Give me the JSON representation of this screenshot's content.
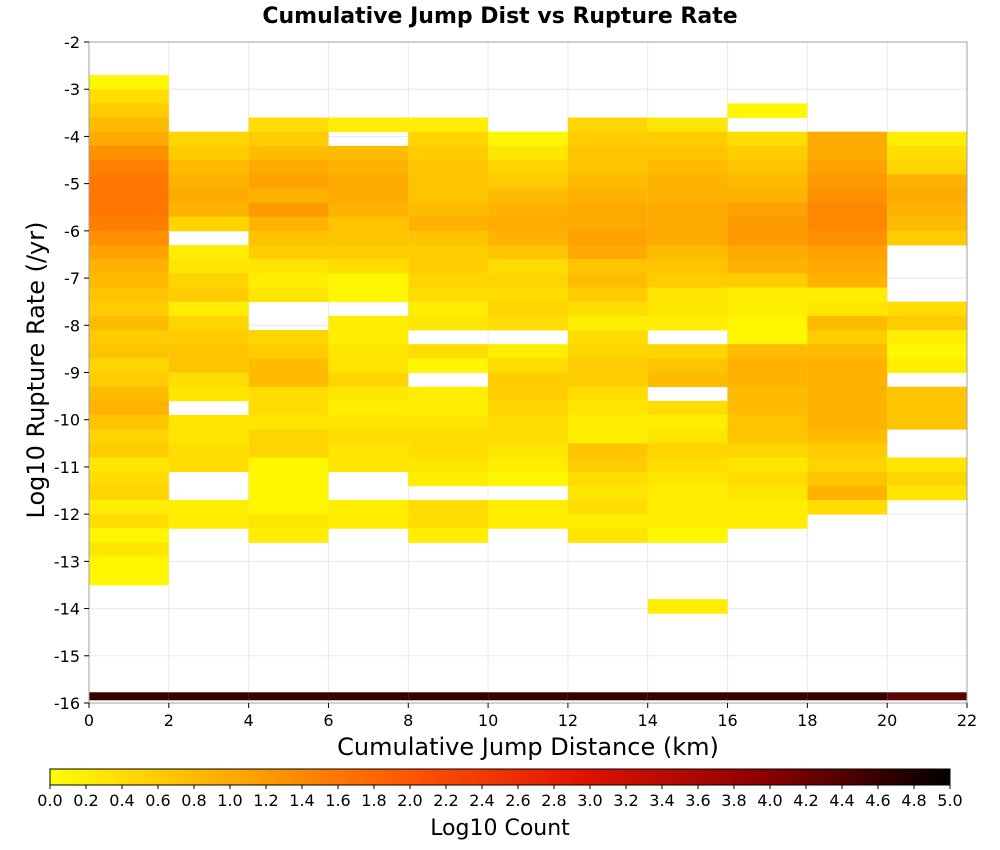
{
  "chart_data": {
    "type": "heatmap",
    "title": "Cumulative Jump Dist vs Rupture Rate",
    "xlabel": "Cumulative Jump Distance (km)",
    "ylabel": "Log10 Rupture Rate (/yr)",
    "xlim": [
      0,
      22
    ],
    "ylim": [
      -16,
      -2
    ],
    "x_ticks": [
      "0",
      "2",
      "4",
      "6",
      "8",
      "10",
      "12",
      "14",
      "16",
      "18",
      "20",
      "22"
    ],
    "y_ticks": [
      "-2",
      "-3",
      "-4",
      "-5",
      "-6",
      "-7",
      "-8",
      "-9",
      "-10",
      "-11",
      "-12",
      "-13",
      "-14",
      "-15",
      "-16"
    ],
    "grid": true,
    "x_bin_width": 2,
    "y_bin_height": 0.3,
    "colorbar": {
      "label": "Log10 Count",
      "range": [
        0,
        5
      ],
      "ticks": [
        "0.0",
        "0.2",
        "0.4",
        "0.6",
        "0.8",
        "1.0",
        "1.2",
        "1.4",
        "1.6",
        "1.8",
        "2.0",
        "2.2",
        "2.4",
        "2.6",
        "2.8",
        "3.0",
        "3.2",
        "3.4",
        "3.6",
        "3.8",
        "4.0",
        "4.2",
        "4.4",
        "4.6",
        "4.8",
        "5.0"
      ],
      "colors": [
        "#ffff00",
        "#ffaa00",
        "#ff5500",
        "#dd1100",
        "#880000",
        "#000000"
      ]
    },
    "cells": [
      {
        "x0": 0,
        "ymax": -2.7,
        "values": [
          0.1,
          0.4,
          0.6,
          0.8,
          1.0,
          1.3,
          1.5,
          1.6,
          1.6,
          1.6,
          1.5,
          1.3,
          1.1,
          0.9,
          0.8,
          0.7,
          0.6,
          0.8,
          0.6,
          0.7,
          0.5,
          0.6,
          0.8,
          0.9,
          0.7,
          0.5,
          0.6,
          0.3,
          0.4,
          0.5,
          0.2,
          0.4,
          0.1,
          0.3,
          0.1,
          0.1
        ]
      },
      {
        "x0": 2,
        "ymax": -3.9,
        "values": [
          0.5,
          0.6,
          0.8,
          0.9,
          1.0,
          0.9,
          0.5,
          null,
          0.2,
          0.3,
          0.5,
          0.6,
          0.2,
          0.5,
          0.6,
          0.7,
          0.7,
          0.4,
          0.3,
          null,
          0.3,
          0.3,
          0.4,
          0.4,
          null,
          null,
          0.2,
          0.2
        ]
      },
      {
        "x0": 4,
        "ymax": -3.6,
        "values": [
          0.4,
          0.6,
          0.8,
          1.0,
          1.1,
          0.9,
          1.2,
          0.9,
          0.7,
          0.6,
          0.3,
          0.2,
          0.3,
          null,
          null,
          0.5,
          0.6,
          0.8,
          0.8,
          0.4,
          0.4,
          0.3,
          0.5,
          0.5,
          0.1,
          0.1,
          0.1,
          0.1,
          0.3,
          0.2
        ]
      },
      {
        "x0": 6,
        "ymax": -3.6,
        "values": [
          0.2,
          null,
          0.8,
          0.9,
          1.0,
          1.0,
          0.9,
          0.7,
          0.7,
          0.6,
          0.4,
          0.1,
          0.1,
          null,
          0.2,
          0.2,
          0.3,
          0.3,
          0.5,
          0.3,
          0.2,
          0.3,
          0.4,
          0.3,
          0.3,
          null,
          null,
          0.2,
          0.2
        ]
      },
      {
        "x0": 8,
        "ymax": -3.6,
        "values": [
          0.2,
          0.5,
          0.6,
          0.7,
          0.7,
          0.7,
          0.8,
          0.9,
          0.7,
          0.6,
          0.6,
          0.5,
          0.4,
          0.2,
          0.3,
          null,
          0.4,
          0.1,
          null,
          0.2,
          0.2,
          0.3,
          0.4,
          0.4,
          0.3,
          0.2,
          null,
          0.4,
          0.4,
          0.2
        ]
      },
      {
        "x0": 10,
        "ymax": -3.9,
        "values": [
          0.1,
          0.3,
          0.5,
          0.6,
          0.8,
          0.9,
          1.0,
          0.9,
          0.7,
          0.4,
          0.5,
          0.4,
          0.5,
          0.4,
          null,
          0.2,
          0.4,
          0.6,
          0.6,
          0.5,
          0.4,
          0.4,
          0.3,
          0.2,
          0.1,
          null,
          0.2,
          0.2
        ]
      },
      {
        "x0": 12,
        "ymax": -3.6,
        "values": [
          0.5,
          0.6,
          0.7,
          0.7,
          0.8,
          0.9,
          1.0,
          1.0,
          1.1,
          1.0,
          0.7,
          0.8,
          0.6,
          0.4,
          0.2,
          0.4,
          0.5,
          0.6,
          0.6,
          0.4,
          0.3,
          0.2,
          0.2,
          0.7,
          0.6,
          0.4,
          0.3,
          0.4,
          0.2,
          0.3
        ]
      },
      {
        "x0": 14,
        "ymax": -3.6,
        "values": [
          0.3,
          0.6,
          0.7,
          0.8,
          0.9,
          0.9,
          1.0,
          1.0,
          1.0,
          0.8,
          0.7,
          0.6,
          0.3,
          0.3,
          0.2,
          null,
          0.5,
          0.7,
          0.8,
          null,
          0.4,
          0.2,
          0.3,
          0.5,
          0.4,
          0.3,
          0.2,
          0.2,
          0.2,
          0.1,
          null,
          null,
          null,
          null,
          0.2
        ]
      },
      {
        "x0": 16,
        "ymax": -3.3,
        "values": [
          0.1,
          null,
          0.4,
          0.6,
          0.7,
          0.8,
          0.9,
          1.1,
          1.2,
          1.2,
          1.0,
          0.9,
          0.6,
          0.2,
          0.2,
          0.1,
          0.1,
          0.8,
          0.9,
          0.9,
          0.8,
          0.8,
          0.7,
          0.7,
          0.5,
          0.3,
          0.4,
          0.3,
          0.2,
          0.2
        ]
      },
      {
        "x0": 18,
        "ymax": -3.9,
        "values": [
          1.0,
          1.0,
          1.1,
          1.2,
          1.3,
          1.4,
          1.4,
          1.3,
          1.1,
          1.0,
          0.9,
          0.2,
          0.3,
          0.8,
          0.6,
          0.8,
          0.9,
          0.9,
          0.9,
          0.9,
          0.9,
          0.8,
          0.6,
          0.5,
          0.7,
          0.9,
          0.4
        ]
      },
      {
        "x0": 20,
        "ymax": -3.9,
        "values": [
          0.2,
          0.4,
          0.5,
          0.9,
          1.0,
          0.9,
          0.8,
          0.6,
          null,
          null,
          null,
          null,
          0.4,
          0.6,
          0.2,
          0.1,
          0.2,
          null,
          0.7,
          0.7,
          0.7,
          null,
          null,
          0.3,
          0.5,
          0.3
        ]
      }
    ],
    "bottom_band": {
      "y": -15.9,
      "colors": [
        "#3a0000",
        "#3a0000",
        "#3a0000",
        "#3a0000",
        "#3a0000",
        "#3a0000",
        "#3a0000",
        "#3a0000",
        "#3a0000",
        "#3a0000",
        "#5a0404"
      ]
    }
  }
}
